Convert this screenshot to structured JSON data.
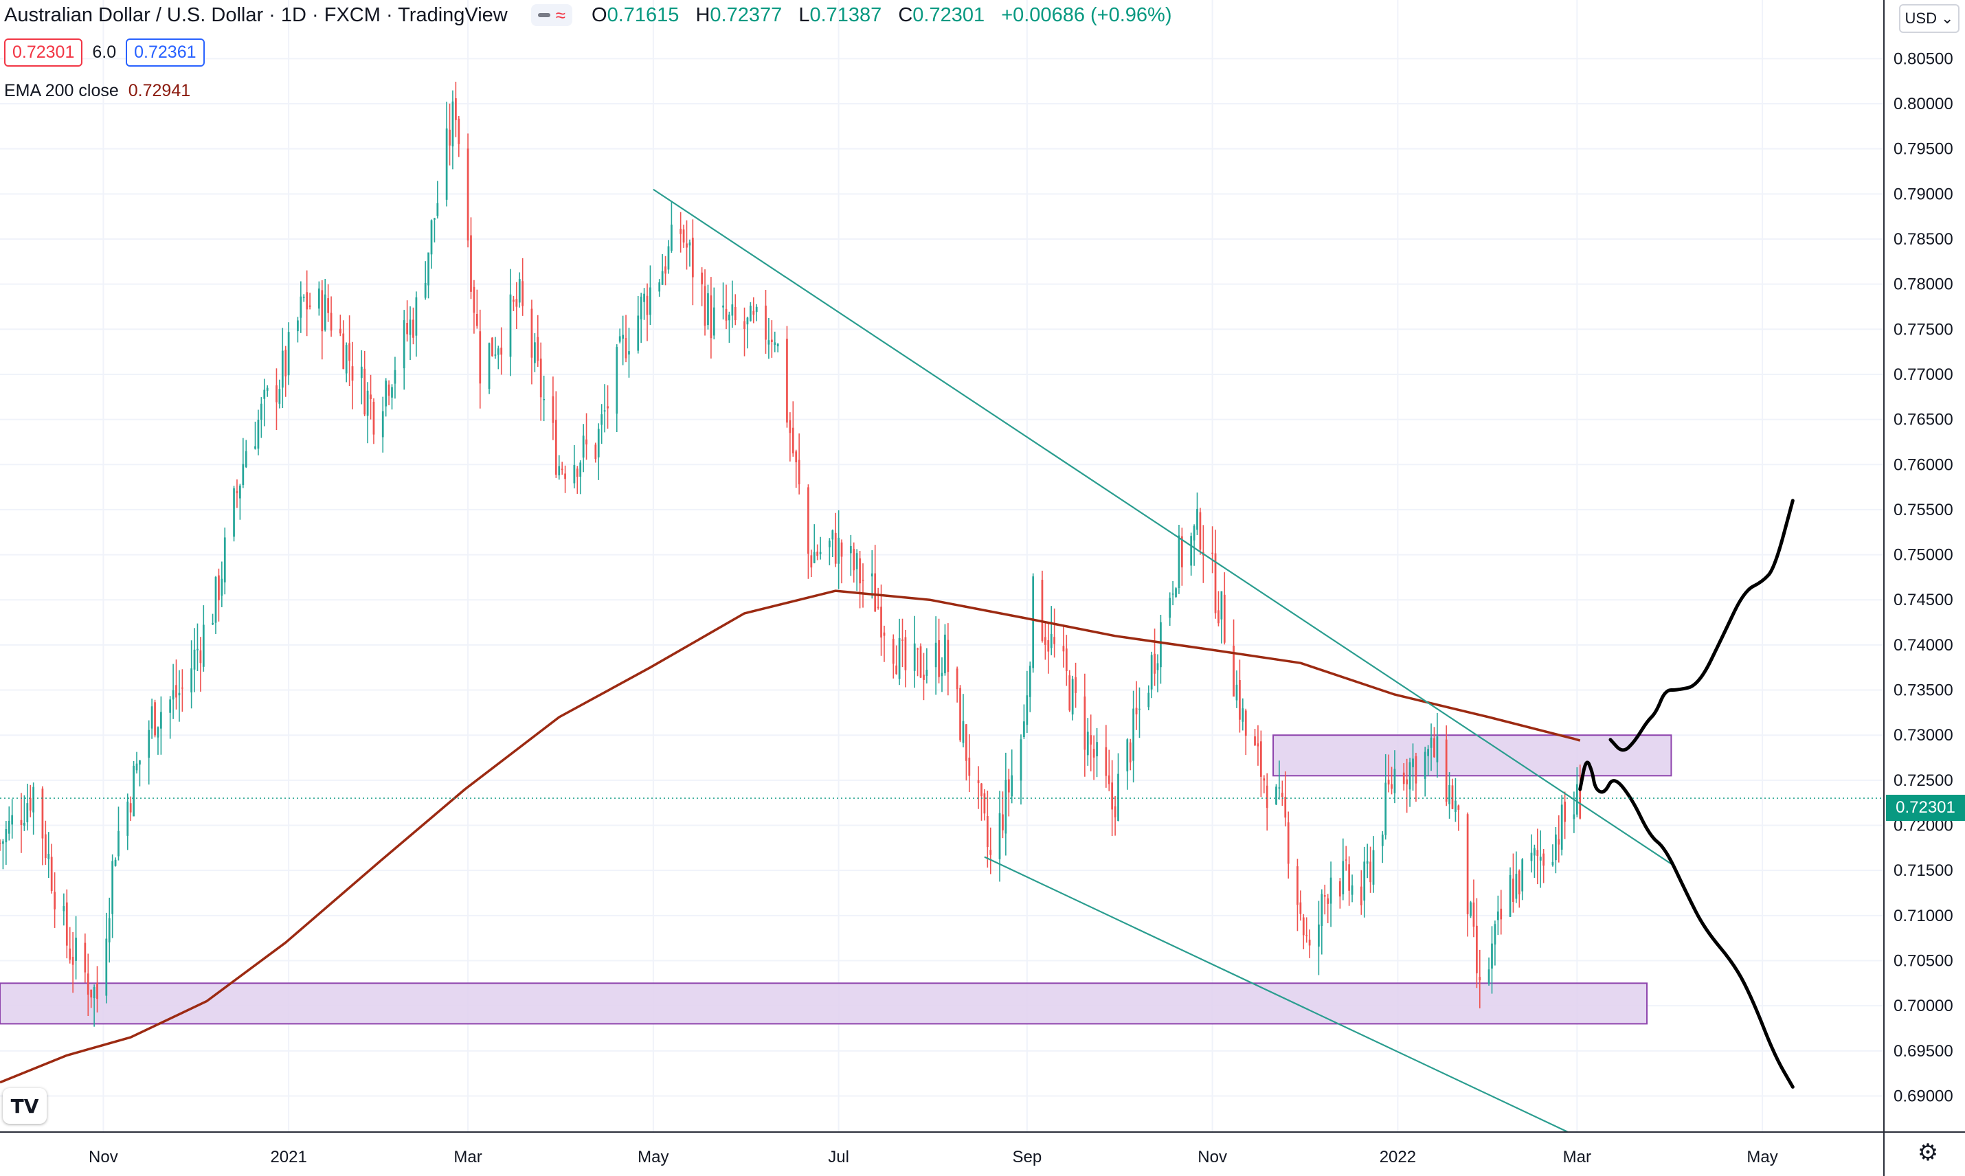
{
  "header": {
    "title": "Australian Dollar / U.S. Dollar · 1D · FXCM · TradingView",
    "ohlc": [
      {
        "k": "O",
        "v": "0.71615"
      },
      {
        "k": "H",
        "v": "0.72377"
      },
      {
        "k": "L",
        "v": "0.71387"
      },
      {
        "k": "C",
        "v": "0.72301"
      }
    ],
    "change": "+0.00686 (+0.96%)",
    "bid": "0.72301",
    "spread": "6.0",
    "ask": "0.72361",
    "indicator_label": "EMA 200 close",
    "indicator_value": "0.72941",
    "currency": "USD",
    "last_price": "0.72301"
  },
  "colors": {
    "up": "#26a69a",
    "down": "#ef5350",
    "ema": "#9c2a12",
    "trendline": "#2a9d8f",
    "zone_fill": "#e1d0ee",
    "zone_border": "#8e44ad",
    "drawing": "#000000",
    "accent": "#089981"
  },
  "chart_data": {
    "type": "candlestick",
    "symbol": "AUDUSD",
    "interval": "1D",
    "ylim": [
      0.686,
      0.8115
    ],
    "xlim": [
      "2020-09-28",
      "2022-06-10"
    ],
    "y_ticks": [
      "0.69000",
      "0.69500",
      "0.70000",
      "0.70500",
      "0.71000",
      "0.71500",
      "0.72000",
      "0.72500",
      "0.73000",
      "0.73500",
      "0.74000",
      "0.74500",
      "0.75000",
      "0.75500",
      "0.76000",
      "0.76500",
      "0.77000",
      "0.77500",
      "0.78000",
      "0.78500",
      "0.79000",
      "0.79500",
      "0.80000",
      "0.80500"
    ],
    "x_ticks": [
      {
        "label": "Nov",
        "date": "2020-11-01"
      },
      {
        "label": "2021",
        "date": "2021-01-01"
      },
      {
        "label": "Mar",
        "date": "2021-03-01"
      },
      {
        "label": "May",
        "date": "2021-05-01"
      },
      {
        "label": "Jul",
        "date": "2021-07-01"
      },
      {
        "label": "Sep",
        "date": "2021-09-01"
      },
      {
        "label": "Nov",
        "date": "2021-11-01"
      },
      {
        "label": "2022",
        "date": "2022-01-01"
      },
      {
        "label": "Mar",
        "date": "2022-03-01"
      },
      {
        "label": "May",
        "date": "2022-05-01"
      }
    ],
    "price_path": [
      [
        "2020-09-28",
        0.718
      ],
      [
        "2020-10-09",
        0.724
      ],
      [
        "2020-10-20",
        0.707
      ],
      [
        "2020-10-30",
        0.701
      ],
      [
        "2020-11-05",
        0.718
      ],
      [
        "2020-11-17",
        0.732
      ],
      [
        "2020-11-27",
        0.735
      ],
      [
        "2020-12-08",
        0.745
      ],
      [
        "2020-12-18",
        0.762
      ],
      [
        "2020-12-31",
        0.771
      ],
      [
        "2021-01-06",
        0.778
      ],
      [
        "2021-01-14",
        0.777
      ],
      [
        "2021-01-29",
        0.766
      ],
      [
        "2021-02-12",
        0.777
      ],
      [
        "2021-02-25",
        0.8
      ],
      [
        "2021-03-05",
        0.771
      ],
      [
        "2021-03-18",
        0.778
      ],
      [
        "2021-03-31",
        0.76
      ],
      [
        "2021-04-12",
        0.762
      ],
      [
        "2021-04-22",
        0.774
      ],
      [
        "2021-05-10",
        0.786
      ],
      [
        "2021-05-20",
        0.776
      ],
      [
        "2021-06-01",
        0.775
      ],
      [
        "2021-06-10",
        0.775
      ],
      [
        "2021-06-21",
        0.75
      ],
      [
        "2021-06-30",
        0.751
      ],
      [
        "2021-07-12",
        0.746
      ],
      [
        "2021-07-23",
        0.737
      ],
      [
        "2021-08-05",
        0.739
      ],
      [
        "2021-08-20",
        0.716
      ],
      [
        "2021-08-31",
        0.731
      ],
      [
        "2021-09-03",
        0.745
      ],
      [
        "2021-09-14",
        0.736
      ],
      [
        "2021-09-29",
        0.722
      ],
      [
        "2021-10-10",
        0.735
      ],
      [
        "2021-10-20",
        0.749
      ],
      [
        "2021-10-28",
        0.753
      ],
      [
        "2021-11-05",
        0.742
      ],
      [
        "2021-11-12",
        0.73
      ],
      [
        "2021-11-25",
        0.72
      ],
      [
        "2021-12-03",
        0.705
      ],
      [
        "2021-12-10",
        0.715
      ],
      [
        "2021-12-20",
        0.712
      ],
      [
        "2021-12-31",
        0.726
      ],
      [
        "2022-01-13",
        0.728
      ],
      [
        "2022-01-20",
        0.722
      ],
      [
        "2022-01-28",
        0.701
      ],
      [
        "2022-02-07",
        0.713
      ],
      [
        "2022-02-18",
        0.717
      ],
      [
        "2022-02-28",
        0.722
      ],
      [
        "2022-03-02",
        0.723
      ]
    ],
    "ema200": [
      [
        "2020-09-28",
        0.6915
      ],
      [
        "2020-10-20",
        0.6945
      ],
      [
        "2020-11-10",
        0.6965
      ],
      [
        "2020-12-05",
        0.7005
      ],
      [
        "2020-12-31",
        0.707
      ],
      [
        "2021-01-31",
        0.716
      ],
      [
        "2021-02-28",
        0.724
      ],
      [
        "2021-03-31",
        0.732
      ],
      [
        "2021-04-30",
        0.7375
      ],
      [
        "2021-05-31",
        0.7435
      ],
      [
        "2021-06-30",
        0.746
      ],
      [
        "2021-07-31",
        0.745
      ],
      [
        "2021-08-31",
        0.743
      ],
      [
        "2021-09-30",
        0.741
      ],
      [
        "2021-10-31",
        0.7395
      ],
      [
        "2021-11-30",
        0.738
      ],
      [
        "2021-12-31",
        0.7345
      ],
      [
        "2022-01-31",
        0.732
      ],
      [
        "2022-02-28",
        0.7296
      ],
      [
        "2022-03-02",
        0.7294
      ]
    ],
    "trendlines": [
      {
        "from": [
          "2021-05-01",
          0.7905
        ],
        "to": [
          "2022-04-02",
          0.7155
        ]
      },
      {
        "from": [
          "2021-08-18",
          0.7165
        ],
        "to": [
          "2022-02-26",
          0.686
        ]
      }
    ],
    "zones": [
      {
        "from": "2020-09-28",
        "to": "2022-03-24",
        "low": 0.698,
        "high": 0.7025
      },
      {
        "from": "2021-11-21",
        "to": "2022-04-01",
        "low": 0.7255,
        "high": 0.73
      }
    ],
    "projections": [
      [
        [
          "2022-03-02",
          0.724
        ],
        [
          "2022-03-04",
          0.7275
        ],
        [
          "2022-03-06",
          0.726
        ],
        [
          "2022-03-07",
          0.724
        ],
        [
          "2022-03-10",
          0.7235
        ],
        [
          "2022-03-13",
          0.7255
        ],
        [
          "2022-03-19",
          0.723
        ],
        [
          "2022-03-25",
          0.7188
        ],
        [
          "2022-03-30",
          0.7175
        ],
        [
          "2022-04-06",
          0.7125
        ],
        [
          "2022-04-12",
          0.7085
        ],
        [
          "2022-04-22",
          0.7045
        ],
        [
          "2022-04-28",
          0.7005
        ],
        [
          "2022-05-05",
          0.6945
        ],
        [
          "2022-05-11",
          0.691
        ]
      ],
      [
        [
          "2022-03-12",
          0.7295
        ],
        [
          "2022-03-16",
          0.728
        ],
        [
          "2022-03-20",
          0.7293
        ],
        [
          "2022-03-24",
          0.7315
        ],
        [
          "2022-03-27",
          0.7325
        ],
        [
          "2022-03-30",
          0.735
        ],
        [
          "2022-04-03",
          0.735
        ],
        [
          "2022-04-10",
          0.7355
        ],
        [
          "2022-04-18",
          0.741
        ],
        [
          "2022-04-25",
          0.746
        ],
        [
          "2022-05-01",
          0.747
        ],
        [
          "2022-05-05",
          0.7485
        ],
        [
          "2022-05-11",
          0.756
        ]
      ]
    ],
    "last_price": 0.72301
  }
}
